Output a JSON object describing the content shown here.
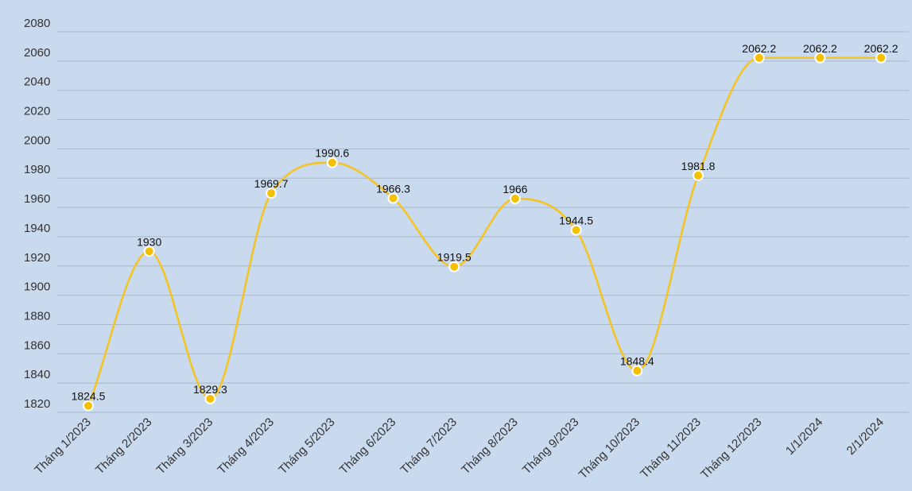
{
  "chart_data": {
    "type": "line",
    "title": "",
    "xlabel": "",
    "ylabel": "",
    "categories": [
      "Tháng 1/2023",
      "Tháng 2/2023",
      "Tháng 3/2023",
      "Tháng 4/2023",
      "Tháng 5/2023",
      "Tháng 6/2023",
      "Tháng 7/2023",
      "Tháng 8/2023",
      "Tháng 9/2023",
      "Tháng 10/2023",
      "Tháng 11/2023",
      "Tháng 12/2023",
      "1/1/2024",
      "2/1/2024"
    ],
    "series": [
      {
        "values": [
          1824.5,
          1930,
          1829.3,
          1969.7,
          1990.6,
          1966.3,
          1919.5,
          1966,
          1944.5,
          1848.4,
          1981.8,
          2062.2,
          2062.2,
          2062.2
        ],
        "labels": [
          "1824.5",
          "1930",
          "1829.3",
          "1969.7",
          "1990.6",
          "1966.3",
          "1919.5",
          "1966",
          "1944.5",
          "1848.4",
          "1981.8",
          "2062.2",
          "2062.2",
          "2062.2"
        ]
      }
    ],
    "ylim": [
      1820,
      2080
    ],
    "yticks": [
      1820,
      1840,
      1860,
      1880,
      1900,
      1920,
      1940,
      1960,
      1980,
      2000,
      2020,
      2040,
      2060,
      2080
    ],
    "grid": true,
    "legend": "none",
    "colors": {
      "line": "#f5c41f",
      "marker_fill": "#f5c000",
      "marker_stroke": "#ffffff",
      "grid": "#a9b8c9",
      "background": "#c9d9ee"
    }
  }
}
